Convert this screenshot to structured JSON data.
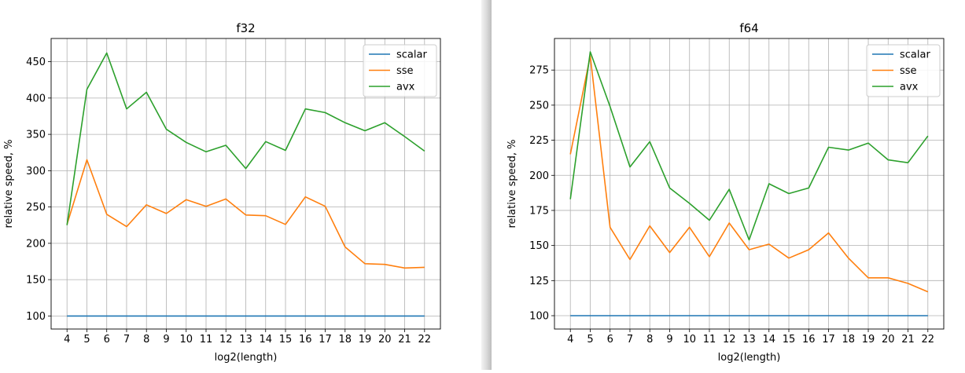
{
  "chart_data": [
    {
      "type": "line",
      "title": "f32",
      "xlabel": "log2(length)",
      "ylabel": "relative speed, %",
      "x": [
        4,
        5,
        6,
        7,
        8,
        9,
        10,
        11,
        12,
        13,
        14,
        15,
        16,
        17,
        18,
        19,
        20,
        21,
        22
      ],
      "xlim": [
        3.2,
        22.8
      ],
      "ylim": [
        82,
        482
      ],
      "yticks": [
        100,
        150,
        200,
        250,
        300,
        350,
        400,
        450
      ],
      "grid": true,
      "legend": "upper right",
      "series": [
        {
          "name": "scalar",
          "color": "#1f77b4",
          "values": [
            100,
            100,
            100,
            100,
            100,
            100,
            100,
            100,
            100,
            100,
            100,
            100,
            100,
            100,
            100,
            100,
            100,
            100,
            100
          ]
        },
        {
          "name": "sse",
          "color": "#ff7f0e",
          "values": [
            226,
            315,
            240,
            223,
            253,
            241,
            260,
            251,
            261,
            239,
            238,
            226,
            264,
            251,
            195,
            172,
            171,
            166,
            167
          ]
        },
        {
          "name": "avx",
          "color": "#2ca02c",
          "values": [
            225,
            412,
            462,
            385,
            408,
            357,
            339,
            326,
            335,
            303,
            340,
            328,
            385,
            380,
            366,
            355,
            366,
            347,
            327
          ]
        }
      ]
    },
    {
      "type": "line",
      "title": "f64",
      "xlabel": "log2(length)",
      "ylabel": "relative speed, %",
      "x": [
        4,
        5,
        6,
        7,
        8,
        9,
        10,
        11,
        12,
        13,
        14,
        15,
        16,
        17,
        18,
        19,
        20,
        21,
        22
      ],
      "xlim": [
        3.2,
        22.8
      ],
      "ylim": [
        90.5,
        297.5
      ],
      "yticks": [
        100,
        125,
        150,
        175,
        200,
        225,
        250,
        275
      ],
      "grid": true,
      "legend": "upper right",
      "series": [
        {
          "name": "scalar",
          "color": "#1f77b4",
          "values": [
            100,
            100,
            100,
            100,
            100,
            100,
            100,
            100,
            100,
            100,
            100,
            100,
            100,
            100,
            100,
            100,
            100,
            100,
            100
          ]
        },
        {
          "name": "sse",
          "color": "#ff7f0e",
          "values": [
            215,
            285,
            163,
            140,
            164,
            145,
            163,
            142,
            166,
            147,
            151,
            141,
            147,
            159,
            141,
            127,
            127,
            123,
            117
          ]
        },
        {
          "name": "avx",
          "color": "#2ca02c",
          "values": [
            183,
            288,
            249,
            206,
            224,
            191,
            180,
            168,
            190,
            154,
            194,
            187,
            191,
            220,
            218,
            223,
            211,
            209,
            228
          ]
        }
      ]
    }
  ]
}
